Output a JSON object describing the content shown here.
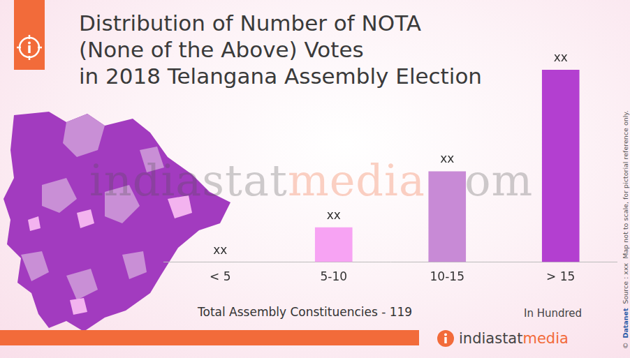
{
  "chart_data": {
    "type": "bar",
    "title": [
      "Distribution of Number of NOTA",
      "(None of the Above) Votes",
      "in 2018 Telangana Assembly Election"
    ],
    "categories": [
      "< 5",
      "5-10",
      "10-15",
      "> 15"
    ],
    "values": [
      0,
      13,
      34,
      72
    ],
    "value_labels": [
      "xx",
      "xx",
      "xx",
      "xx"
    ],
    "data_labels": true,
    "colors": [
      "#f7a3f3",
      "#f7a3f3",
      "#c88ad6",
      "#b33fd0"
    ],
    "ylim": [
      0,
      72
    ],
    "tick_labels": "x",
    "grid": false,
    "x_label": "Total Assembly Constituencies - 119",
    "annotations": [
      "In Hundred"
    ]
  },
  "page": {
    "watermark": [
      "india",
      "stat",
      "media",
      ".com"
    ],
    "logo": [
      "india",
      "stat",
      "media"
    ],
    "side_note": [
      "©",
      "Datanet",
      "Source : xxx",
      "Map not to scale, for pictorial reference only."
    ]
  }
}
